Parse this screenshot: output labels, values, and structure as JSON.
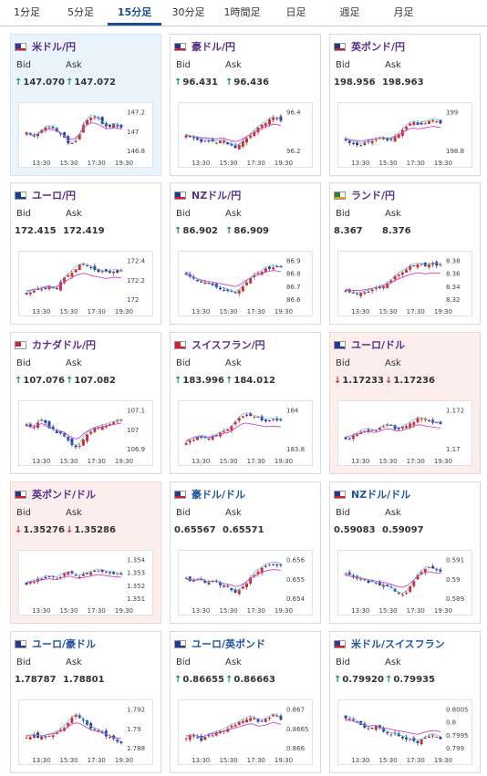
{
  "tabs": [
    {
      "label": "1分足",
      "active": false
    },
    {
      "label": "5分足",
      "active": false
    },
    {
      "label": "15分足",
      "active": true
    },
    {
      "label": "30分足",
      "active": false
    },
    {
      "label": "1時間足",
      "active": false
    },
    {
      "label": "日足",
      "active": false
    },
    {
      "label": "週足",
      "active": false
    },
    {
      "label": "月足",
      "active": false
    }
  ],
  "labels": {
    "bid": "Bid",
    "ask": "Ask"
  },
  "colors": {
    "up": "#1a8a7a",
    "down": "#d03030",
    "ma": "#cc44cc",
    "ma2": "#4db8d8",
    "candle_up": "#d03030",
    "candle_down": "#2b3a9e"
  },
  "xticks": [
    "13:30",
    "15:30",
    "17:30",
    "19:30"
  ],
  "cards": [
    {
      "name": "usd-jpy",
      "title": "米ドル/円",
      "flag": "us",
      "bg": "blue",
      "bid": "147.070",
      "ask": "147.072",
      "bid_dir": "up",
      "ask_dir": "up",
      "yticks": [
        "147.2",
        "147",
        "146.8"
      ],
      "trend": [
        0.45,
        0.35,
        0.5,
        0.6,
        0.55,
        0.4,
        0.2,
        0.3,
        0.7,
        0.85,
        0.75,
        0.6,
        0.65,
        0.6
      ]
    },
    {
      "name": "aud-jpy",
      "title": "豪ドル/円",
      "flag": "au",
      "bg": "white",
      "bid": "96.431",
      "ask": "96.436",
      "bid_dir": "up",
      "ask_dir": "up",
      "yticks": [
        "96.4",
        "96.2"
      ],
      "trend": [
        0.4,
        0.35,
        0.3,
        0.3,
        0.25,
        0.3,
        0.2,
        0.15,
        0.3,
        0.45,
        0.6,
        0.7,
        0.8,
        0.75
      ]
    },
    {
      "name": "gbp-jpy",
      "title": "英ポンド/円",
      "flag": "gb",
      "bg": "white",
      "bid": "198.956",
      "ask": "198.963",
      "bid_dir": "none",
      "ask_dir": "none",
      "yticks": [
        "199",
        "198.8"
      ],
      "trend": [
        0.3,
        0.25,
        0.2,
        0.25,
        0.3,
        0.35,
        0.3,
        0.4,
        0.55,
        0.7,
        0.65,
        0.7,
        0.75,
        0.7
      ]
    },
    {
      "name": "eur-jpy",
      "title": "ユーロ/円",
      "flag": "eu",
      "bg": "white",
      "bid": "172.415",
      "ask": "172.419",
      "bid_dir": "none",
      "ask_dir": "none",
      "yticks": [
        "172.4",
        "172.2",
        "172"
      ],
      "trend": [
        0.2,
        0.25,
        0.3,
        0.35,
        0.3,
        0.5,
        0.65,
        0.8,
        0.85,
        0.75,
        0.7,
        0.65,
        0.7,
        0.68
      ]
    },
    {
      "name": "nzd-jpy",
      "title": "NZドル/円",
      "flag": "nz",
      "bg": "white",
      "bid": "86.902",
      "ask": "86.909",
      "bid_dir": "up",
      "ask_dir": "up",
      "yticks": [
        "86.9",
        "86.8",
        "86.7",
        "86.6"
      ],
      "trend": [
        0.65,
        0.55,
        0.45,
        0.4,
        0.35,
        0.3,
        0.25,
        0.2,
        0.4,
        0.55,
        0.65,
        0.75,
        0.8,
        0.75
      ]
    },
    {
      "name": "zar-jpy",
      "title": "ランド/円",
      "flag": "za",
      "bg": "white",
      "bid": "8.367",
      "ask": "8.376",
      "bid_dir": "none",
      "ask_dir": "none",
      "yticks": [
        "8.38",
        "8.36",
        "8.34",
        "8.32"
      ],
      "trend": [
        0.25,
        0.2,
        0.2,
        0.25,
        0.3,
        0.35,
        0.45,
        0.6,
        0.7,
        0.8,
        0.85,
        0.8,
        0.85,
        0.82
      ]
    },
    {
      "name": "cad-jpy",
      "title": "カナダドル/円",
      "flag": "ca",
      "bg": "white",
      "bid": "107.076",
      "ask": "107.082",
      "bid_dir": "up",
      "ask_dir": "up",
      "yticks": [
        "107.1",
        "107",
        "106.9"
      ],
      "trend": [
        0.6,
        0.55,
        0.7,
        0.55,
        0.45,
        0.4,
        0.2,
        0.1,
        0.35,
        0.5,
        0.55,
        0.6,
        0.65,
        0.7
      ]
    },
    {
      "name": "chf-jpy",
      "title": "スイスフラン/円",
      "flag": "ch",
      "bg": "white",
      "bid": "183.996",
      "ask": "184.012",
      "bid_dir": "up",
      "ask_dir": "up",
      "yticks": [
        "184",
        "183.8"
      ],
      "trend": [
        0.2,
        0.3,
        0.35,
        0.3,
        0.35,
        0.45,
        0.5,
        0.7,
        0.85,
        0.8,
        0.75,
        0.7,
        0.72,
        0.7
      ]
    },
    {
      "name": "eur-usd",
      "title": "ユーロ/ドル",
      "flag": "eu",
      "bg": "pink",
      "bid": "1.17233",
      "ask": "1.17236",
      "bid_dir": "down",
      "ask_dir": "down",
      "yticks": [
        "1.172",
        "1.17"
      ],
      "trend": [
        0.3,
        0.35,
        0.45,
        0.5,
        0.45,
        0.55,
        0.6,
        0.5,
        0.55,
        0.65,
        0.75,
        0.7,
        0.65,
        0.62
      ]
    },
    {
      "name": "gbp-usd",
      "title": "英ポンド/ドル",
      "flag": "gb",
      "bg": "pink",
      "bid": "1.35276",
      "ask": "1.35286",
      "bid_dir": "down",
      "ask_dir": "down",
      "yticks": [
        "1.354",
        "1.353",
        "1.352",
        "1.351"
      ],
      "trend": [
        0.4,
        0.45,
        0.5,
        0.55,
        0.5,
        0.6,
        0.65,
        0.55,
        0.6,
        0.65,
        0.7,
        0.65,
        0.62,
        0.6
      ]
    },
    {
      "name": "aud-usd",
      "title": "豪ドル/ドル",
      "flag": "au",
      "bg": "white",
      "bid": "0.65567",
      "ask": "0.65571",
      "bid_dir": "none",
      "ask_dir": "none",
      "yticks": [
        "0.656",
        "0.655",
        "0.654"
      ],
      "trend": [
        0.5,
        0.45,
        0.5,
        0.4,
        0.45,
        0.35,
        0.3,
        0.2,
        0.35,
        0.55,
        0.7,
        0.8,
        0.85,
        0.82
      ]
    },
    {
      "name": "nzd-usd",
      "title": "NZドル/ドル",
      "flag": "nz",
      "bg": "white",
      "bid": "0.59083",
      "ask": "0.59097",
      "bid_dir": "none",
      "ask_dir": "none",
      "yticks": [
        "0.591",
        "0.59",
        "0.589"
      ],
      "trend": [
        0.6,
        0.55,
        0.5,
        0.45,
        0.4,
        0.35,
        0.3,
        0.2,
        0.15,
        0.35,
        0.6,
        0.75,
        0.7,
        0.68
      ]
    },
    {
      "name": "eur-aud",
      "title": "ユーロ/豪ドル",
      "flag": "eu",
      "bg": "white",
      "bid": "1.78787",
      "ask": "1.78801",
      "bid_dir": "none",
      "ask_dir": "none",
      "yticks": [
        "1.792",
        "1.79",
        "1.788"
      ],
      "trend": [
        0.3,
        0.35,
        0.3,
        0.35,
        0.4,
        0.5,
        0.7,
        0.8,
        0.65,
        0.5,
        0.45,
        0.35,
        0.25,
        0.2
      ]
    },
    {
      "name": "eur-gbp",
      "title": "ユーロ/英ポンド",
      "flag": "eu",
      "bg": "white",
      "bid": "0.86655",
      "ask": "0.86663",
      "bid_dir": "up",
      "ask_dir": "up",
      "yticks": [
        "0.867",
        "0.8665",
        "0.866"
      ],
      "trend": [
        0.3,
        0.35,
        0.25,
        0.35,
        0.4,
        0.45,
        0.55,
        0.6,
        0.7,
        0.75,
        0.65,
        0.7,
        0.8,
        0.72
      ]
    },
    {
      "name": "usd-chf",
      "title": "米ドル/スイスフラン",
      "flag": "us",
      "bg": "white",
      "bid": "0.79920",
      "ask": "0.79935",
      "bid_dir": "up",
      "ask_dir": "up",
      "yticks": [
        "0.8005",
        "0.8",
        "0.7995",
        "0.799"
      ],
      "trend": [
        0.75,
        0.7,
        0.6,
        0.5,
        0.55,
        0.45,
        0.4,
        0.35,
        0.3,
        0.25,
        0.2,
        0.3,
        0.35,
        0.3
      ]
    }
  ]
}
